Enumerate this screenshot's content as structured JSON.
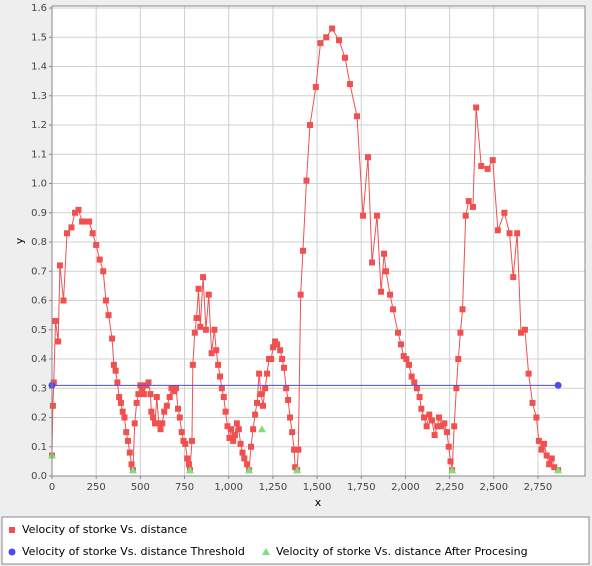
{
  "chart_data": {
    "type": "line",
    "xlabel": "x",
    "ylabel": "y",
    "xlim": [
      0,
      3016
    ],
    "ylim": [
      0,
      1.607
    ],
    "xticks": [
      0,
      250,
      500,
      750,
      {
        "value": 1000,
        "label": "1,000"
      },
      {
        "value": 1250,
        "label": "1,250"
      },
      {
        "value": 1500,
        "label": "1,500"
      },
      {
        "value": 1750,
        "label": "1,750"
      },
      {
        "value": 2000,
        "label": "2,000"
      },
      {
        "value": 2250,
        "label": "2,250"
      },
      {
        "value": 2500,
        "label": "2,500"
      },
      {
        "value": 2750,
        "label": "2,750"
      }
    ],
    "yticks": [
      {
        "value": 0,
        "label": "0.0"
      },
      0.1,
      0.2,
      0.3,
      0.4,
      0.5,
      0.6,
      0.7,
      0.8,
      0.9,
      {
        "value": 1,
        "label": "1.0"
      },
      1.1,
      1.2,
      1.3,
      1.4,
      1.5,
      1.6
    ],
    "grid": true,
    "legend": "bottom",
    "series": [
      {
        "name": "Velocity of storke Vs. distance",
        "color": "#f05050",
        "marker": "square",
        "line": true,
        "x": [
          0,
          5,
          10,
          20,
          35,
          45,
          65,
          85,
          110,
          130,
          150,
          170,
          190,
          210,
          230,
          250,
          270,
          290,
          305,
          320,
          340,
          350,
          360,
          370,
          380,
          390,
          400,
          410,
          420,
          430,
          440,
          450,
          458,
          468,
          479,
          489,
          500,
          510,
          520,
          531,
          546,
          557,
          562,
          572,
          583,
          593,
          604,
          614,
          624,
          635,
          650,
          666,
          676,
          692,
          702,
          713,
          723,
          734,
          744,
          754,
          765,
          775,
          781,
          792,
          797,
          808,
          818,
          829,
          839,
          855,
          871,
          887,
          903,
          919,
          929,
          940,
          951,
          961,
          972,
          982,
          993,
          1004,
          1014,
          1025,
          1035,
          1046,
          1057,
          1067,
          1078,
          1088,
          1104,
          1115,
          1126,
          1138,
          1149,
          1160,
          1172,
          1183,
          1194,
          1206,
          1217,
          1228,
          1240,
          1251,
          1262,
          1274,
          1291,
          1302,
          1313,
          1325,
          1336,
          1347,
          1359,
          1370,
          1376,
          1387,
          1394,
          1407,
          1420,
          1440,
          1460,
          1493,
          1519,
          1552,
          1585,
          1624,
          1658,
          1686,
          1726,
          1760,
          1788,
          1811,
          1839,
          1862,
          1879,
          1890,
          1913,
          1930,
          1958,
          1975,
          1990,
          2005,
          2020,
          2035,
          2050,
          2065,
          2080,
          2090,
          2105,
          2120,
          2135,
          2150,
          2165,
          2180,
          2190,
          2205,
          2220,
          2235,
          2245,
          2255,
          2264,
          2276,
          2288,
          2299,
          2311,
          2323,
          2341,
          2358,
          2382,
          2400,
          2429,
          2465,
          2494,
          2523,
          2560,
          2589,
          2610,
          2632,
          2654,
          2676,
          2697,
          2719,
          2741,
          2755,
          2770,
          2784,
          2799,
          2813,
          2828,
          2842,
          2864
        ],
        "values": [
          0.07,
          0.24,
          0.32,
          0.53,
          0.46,
          0.72,
          0.6,
          0.83,
          0.85,
          0.9,
          0.91,
          0.87,
          0.87,
          0.87,
          0.83,
          0.79,
          0.74,
          0.7,
          0.6,
          0.55,
          0.47,
          0.38,
          0.36,
          0.32,
          0.27,
          0.25,
          0.22,
          0.2,
          0.15,
          0.12,
          0.08,
          0.04,
          0.02,
          0.18,
          0.25,
          0.28,
          0.31,
          0.3,
          0.28,
          0.31,
          0.32,
          0.28,
          0.22,
          0.2,
          0.18,
          0.27,
          0.18,
          0.16,
          0.18,
          0.22,
          0.24,
          0.27,
          0.3,
          0.29,
          0.3,
          0.23,
          0.2,
          0.15,
          0.12,
          0.11,
          0.06,
          0.04,
          0.02,
          0.12,
          0.38,
          0.49,
          0.54,
          0.64,
          0.51,
          0.68,
          0.5,
          0.62,
          0.42,
          0.5,
          0.43,
          0.38,
          0.34,
          0.3,
          0.27,
          0.22,
          0.17,
          0.13,
          0.16,
          0.12,
          0.14,
          0.18,
          0.16,
          0.11,
          0.08,
          0.06,
          0.04,
          0.02,
          0.1,
          0.16,
          0.21,
          0.25,
          0.35,
          0.28,
          0.24,
          0.3,
          0.35,
          0.4,
          0.4,
          0.44,
          0.46,
          0.45,
          0.43,
          0.4,
          0.37,
          0.3,
          0.26,
          0.2,
          0.15,
          0.09,
          0.03,
          0.02,
          0.09,
          0.62,
          0.77,
          1.01,
          1.2,
          1.33,
          1.48,
          1.5,
          1.53,
          1.49,
          1.43,
          1.34,
          1.23,
          0.89,
          1.09,
          0.73,
          0.89,
          0.63,
          0.76,
          0.7,
          0.62,
          0.57,
          0.49,
          0.45,
          0.41,
          0.4,
          0.38,
          0.34,
          0.32,
          0.3,
          0.27,
          0.23,
          0.2,
          0.17,
          0.21,
          0.19,
          0.14,
          0.17,
          0.2,
          0.17,
          0.18,
          0.15,
          0.1,
          0.05,
          0.02,
          0.17,
          0.3,
          0.4,
          0.49,
          0.57,
          0.89,
          0.94,
          0.92,
          1.26,
          1.06,
          1.05,
          1.08,
          0.84,
          0.9,
          0.83,
          0.68,
          0.83,
          0.49,
          0.5,
          0.35,
          0.25,
          0.2,
          0.12,
          0.09,
          0.11,
          0.07,
          0.04,
          0.06,
          0.03,
          0.02
        ]
      },
      {
        "name": "Velocity of storke Vs. distance  Threshold",
        "color": "#4b4bf0",
        "marker": "circle",
        "line": true,
        "x": [
          0,
          2864
        ],
        "values": [
          0.31,
          0.31
        ]
      },
      {
        "name": "Velocity of storke Vs. distance  After Procesing",
        "color": "#7ce07c",
        "marker": "triangle",
        "line": false,
        "x": [
          0,
          458,
          781,
          1115,
          1188,
          1387,
          2264,
          2864
        ],
        "values": [
          0.07,
          0.02,
          0.02,
          0.02,
          0.16,
          0.02,
          0.02,
          0.02
        ]
      }
    ]
  }
}
